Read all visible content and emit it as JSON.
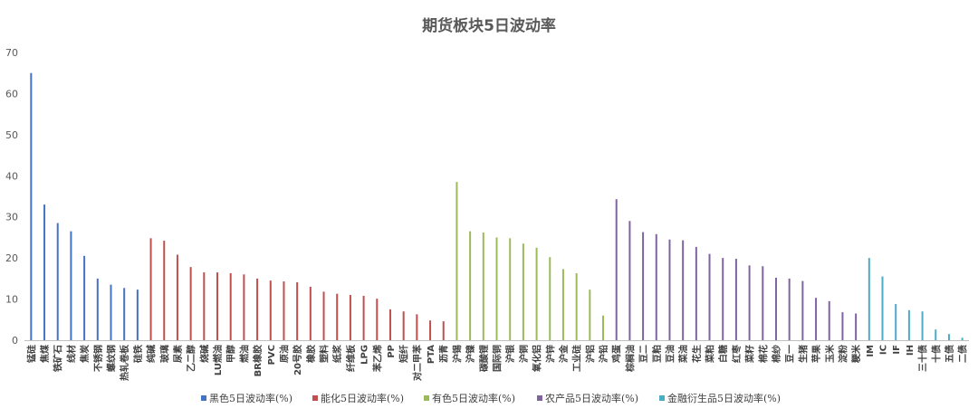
{
  "chart_data": {
    "type": "bar",
    "title": "期货板块5日波动率",
    "xlabel": "",
    "ylabel": "",
    "ylim": [
      0,
      70
    ],
    "yticks": [
      0,
      10,
      20,
      30,
      40,
      50,
      60,
      70
    ],
    "grid": false,
    "legend_position": "bottom",
    "series": [
      {
        "name": "黑色5日波动率(%)",
        "color": "#4472C4",
        "categories": [
          "锰硅",
          "焦煤",
          "铁矿石",
          "线材",
          "焦炭",
          "不锈钢",
          "螺纹钢",
          "热轧卷板",
          "硅铁"
        ],
        "values": [
          65,
          33,
          28.5,
          26.5,
          20.5,
          15,
          13.5,
          12.7,
          12.3
        ]
      },
      {
        "name": "能化5日波动率(%)",
        "color": "#C0504D",
        "categories": [
          "纯碱",
          "玻璃",
          "尿素",
          "乙二醇",
          "烧碱",
          "LU燃油",
          "甲醇",
          "燃油",
          "BR橡胶",
          "PVC",
          "原油",
          "20号胶",
          "橡胶",
          "塑料",
          "纸浆",
          "纤维板",
          "LPG",
          "苯乙烯",
          "PP",
          "短纤",
          "对二甲苯",
          "PTA",
          "沥青"
        ],
        "values": [
          24.8,
          24.2,
          20.8,
          17.8,
          16.5,
          16.5,
          16.3,
          16,
          15,
          14.5,
          14.3,
          14.1,
          13,
          11.8,
          11.3,
          11,
          10.8,
          10.1,
          7.5,
          7,
          6.3,
          4.8,
          4.6
        ]
      },
      {
        "name": "有色5日波动率(%)",
        "color": "#9BBB59",
        "categories": [
          "沪锡",
          "沪镍",
          "碳酸锂",
          "国际铜",
          "沪银",
          "沪铜",
          "氧化铝",
          "沪锌",
          "沪金",
          "工业硅",
          "沪铝",
          "沪铅"
        ],
        "values": [
          38.5,
          26.5,
          26.2,
          25,
          24.8,
          23.5,
          22.5,
          20.2,
          17.3,
          16.3,
          12.3,
          6
        ]
      },
      {
        "name": "农产品5日波动率(%)",
        "color": "#8064A2",
        "categories": [
          "鸡蛋",
          "棕榈油",
          "豆二",
          "豆粕",
          "豆油",
          "菜油",
          "花生",
          "菜粕",
          "白糖",
          "红枣",
          "菜籽",
          "棉花",
          "棉纱",
          "豆一",
          "生猪",
          "苹果",
          "玉米",
          "淀粉",
          "粳米"
        ],
        "values": [
          34.3,
          29,
          26.3,
          25.8,
          24.5,
          24.3,
          22.7,
          21,
          20,
          19.8,
          18.2,
          18,
          15.2,
          15,
          14.4,
          10.3,
          9.5,
          6.8,
          6.5
        ]
      },
      {
        "name": "金融衍生品5日波动率(%)",
        "color": "#4BACC6",
        "categories": [
          "IM",
          "IC",
          "IF",
          "IH",
          "三十债",
          "十债",
          "五债",
          "二债"
        ],
        "values": [
          20,
          15.5,
          8.8,
          7.3,
          7,
          2.6,
          1.5,
          0.6
        ]
      }
    ]
  }
}
